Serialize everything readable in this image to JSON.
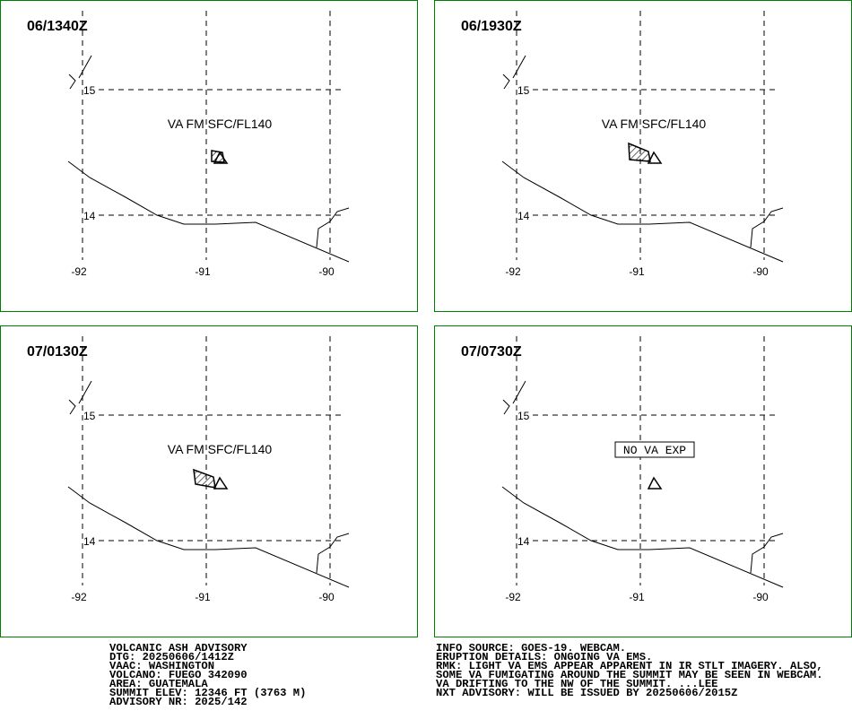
{
  "panels": [
    {
      "time": "06/1340Z",
      "label": "VA FM SFC/FL140"
    },
    {
      "time": "06/1930Z",
      "label": "VA FM SFC/FL140"
    },
    {
      "time": "07/0130Z",
      "label": "VA FM SFC/FL140"
    },
    {
      "time": "07/0730Z",
      "label": "NO VA EXP"
    }
  ],
  "grid": {
    "lon_labels": [
      "-92",
      "-91",
      "-90"
    ],
    "lat_labels": [
      "15",
      "14"
    ]
  },
  "advisory": {
    "left": [
      "VOLCANIC ASH ADVISORY",
      "DTG: 20250606/1412Z",
      "VAAC: WASHINGTON",
      "VOLCANO: FUEGO 342090",
      "AREA: GUATEMALA",
      "SUMMIT ELEV: 12346 FT (3763 M)",
      "ADVISORY NR: 2025/142"
    ],
    "right": [
      "INFO SOURCE: GOES-19. WEBCAM.",
      "ERUPTION DETAILS: ONGOING VA EMS.",
      "RMK: LIGHT VA EMS APPEAR APPARENT IN IR STLT IMAGERY. ALSO,",
      "SOME VA FUMIGATING AROUND THE SUMMIT MAY BE SEEN IN WEBCAM.",
      "VA DRIFTING TO THE NW OF THE SUMMIT. ...LEE",
      "NXT ADVISORY: WILL BE ISSUED BY 20250606/2015Z"
    ]
  }
}
